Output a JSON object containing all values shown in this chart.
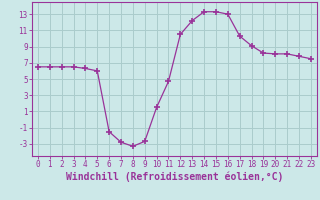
{
  "x": [
    0,
    1,
    2,
    3,
    4,
    5,
    6,
    7,
    8,
    9,
    10,
    11,
    12,
    13,
    14,
    15,
    16,
    17,
    18,
    19,
    20,
    21,
    22,
    23
  ],
  "y": [
    6.5,
    6.5,
    6.5,
    6.5,
    6.3,
    6.0,
    -1.5,
    -2.8,
    -3.3,
    -2.7,
    1.5,
    4.7,
    10.5,
    12.2,
    13.3,
    13.3,
    13.0,
    10.3,
    9.1,
    8.2,
    8.1,
    8.1,
    7.8,
    7.5
  ],
  "line_color": "#993399",
  "marker": "+",
  "marker_size": 4,
  "bg_color": "#cce8e8",
  "plot_bg_color": "#cce8e8",
  "grid_color": "#aacccc",
  "xlabel": "Windchill (Refroidissement éolien,°C)",
  "xlim": [
    -0.5,
    23.5
  ],
  "ylim": [
    -4.5,
    14.5
  ],
  "yticks": [
    -3,
    -1,
    1,
    3,
    5,
    7,
    9,
    11,
    13
  ],
  "xticks": [
    0,
    1,
    2,
    3,
    4,
    5,
    6,
    7,
    8,
    9,
    10,
    11,
    12,
    13,
    14,
    15,
    16,
    17,
    18,
    19,
    20,
    21,
    22,
    23
  ],
  "tick_label_fontsize": 5.5,
  "xlabel_fontsize": 7.0,
  "spine_color": "#993399",
  "marker_color": "#993399"
}
